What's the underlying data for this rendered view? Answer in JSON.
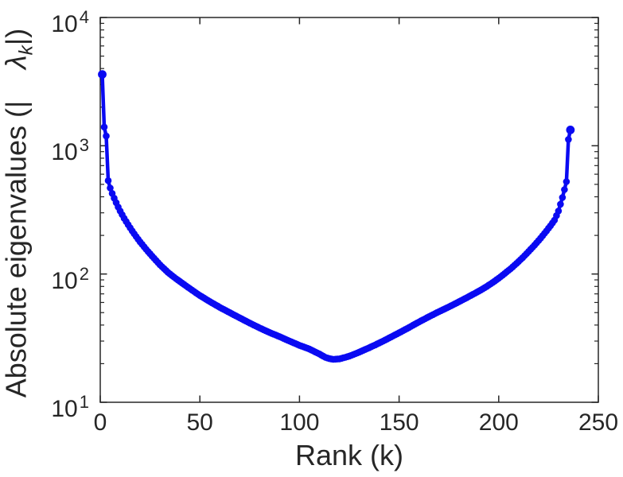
{
  "figure": {
    "background": "#ffffff",
    "axes_color": "#262626",
    "tick_label_color": "#262626"
  },
  "chart_data": {
    "type": "line",
    "title": "",
    "xlabel": "Rank (k)",
    "ylabel": {
      "prefix": "Absolute eigenvalues (|",
      "symbol": "λ",
      "subscript": "k",
      "suffix": "|)"
    },
    "xscale": "linear",
    "yscale": "log",
    "xlim": [
      0,
      250
    ],
    "ylim": [
      10,
      10000
    ],
    "xticks": [
      0,
      50,
      100,
      150,
      200,
      250
    ],
    "ytick_base": "10",
    "ytick_exponents": [
      1,
      2,
      3,
      4
    ],
    "minor_ticks": "log-y-only",
    "grid": false,
    "legend": false,
    "series": [
      {
        "name": "absolute-eigenvalues",
        "color": "#0a0af2",
        "marker": "filled-circle",
        "num_points": 236,
        "x": [
          1,
          2,
          3,
          4,
          5,
          6,
          7,
          8,
          9,
          10,
          12,
          14,
          16,
          18,
          20,
          23,
          26,
          30,
          34,
          38,
          42,
          46,
          50,
          55,
          60,
          65,
          70,
          75,
          80,
          85,
          90,
          95,
          100,
          105,
          110,
          113,
          115,
          117,
          120,
          123,
          126,
          130,
          134,
          138,
          142,
          146,
          150,
          155,
          160,
          165,
          169,
          174,
          178,
          182,
          186,
          190,
          194,
          198,
          202,
          206,
          209,
          212,
          215,
          218,
          221,
          224,
          226,
          228,
          230,
          231,
          232,
          233,
          234,
          235,
          236
        ],
        "y": [
          3600,
          1400,
          1190,
          535,
          468,
          425,
          390,
          360,
          333,
          310,
          272,
          242,
          217,
          196,
          178,
          156,
          138,
          118,
          103,
          92,
          83,
          75,
          68,
          61,
          55,
          50,
          45.5,
          41.5,
          38,
          35,
          32.5,
          30,
          27.8,
          26,
          23.8,
          22.4,
          21.9,
          21.6,
          21.8,
          22.4,
          23.2,
          24.6,
          26.2,
          28,
          30,
          32.3,
          34.8,
          38.3,
          42.3,
          46.5,
          50,
          54.5,
          58.5,
          63,
          68,
          73.5,
          80,
          88,
          98,
          110,
          121,
          134,
          150,
          168,
          190,
          217,
          238,
          263,
          310,
          350,
          395,
          455,
          525,
          1120,
          1330
        ]
      }
    ]
  }
}
